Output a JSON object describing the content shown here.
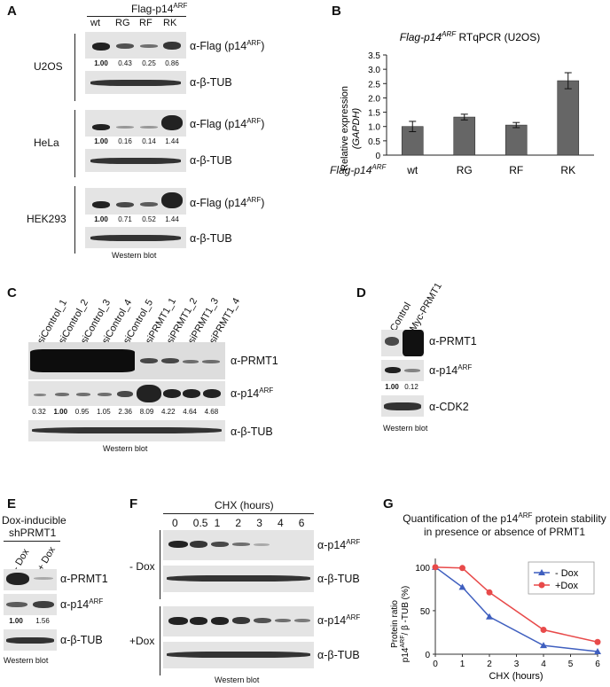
{
  "panelA": {
    "label": "A",
    "header": "Flag-p14",
    "header_sup": "ARF",
    "lanes": [
      "wt",
      "RG",
      "RF",
      "RK"
    ],
    "cells": [
      {
        "name": "U2OS",
        "flag_label": "α-Flag (p14",
        "quant": [
          "1.00",
          "0.43",
          "0.25",
          "0.86"
        ],
        "intensities": [
          1.0,
          0.43,
          0.25,
          0.86
        ]
      },
      {
        "name": "HeLa",
        "flag_label": "α-Flag (p14",
        "quant": [
          "1.00",
          "0.16",
          "0.14",
          "1.44"
        ],
        "intensities": [
          1.0,
          0.16,
          0.14,
          1.44
        ]
      },
      {
        "name": "HEK293",
        "flag_label": "α-Flag (p14",
        "quant": [
          "1.00",
          "0.71",
          "0.52",
          "1.44"
        ],
        "intensities": [
          1.0,
          0.71,
          0.52,
          1.44
        ]
      }
    ],
    "sup": "ARF",
    "close": ")",
    "tub_label": "α-β-TUB",
    "footer": "Western blot"
  },
  "panelB": {
    "label": "B",
    "title_italic": "Flag-p14",
    "title_sup": "ARF",
    "title_rest": " RTqPCR (U2OS)",
    "ylabel_main": "Relative expression",
    "ylabel_sub": "(GAPDH)",
    "row_label": "Flag-p14",
    "row_sup": "ARF",
    "chart_data": {
      "type": "bar",
      "categories": [
        "wt",
        "RG",
        "RF",
        "RK"
      ],
      "values": [
        1.0,
        1.33,
        1.05,
        2.6
      ],
      "errors": [
        0.18,
        0.1,
        0.09,
        0.28
      ],
      "ylim": [
        0,
        3.5
      ],
      "yticks": [
        "0",
        "0.5",
        "1.0",
        "1.5",
        "2.0",
        "2.5",
        "3.0",
        "3.5"
      ],
      "bar_color": "#666666"
    }
  },
  "panelC": {
    "label": "C",
    "lanes": [
      "siControl_1",
      "siControl_2",
      "siControl_3",
      "siControl_4",
      "siControl_5",
      "siPRMT1_1",
      "siPRMT1_2",
      "siPRMT1_3",
      "siPRMT1_4"
    ],
    "prmt1_label": "α-PRMT1",
    "p14_label": "α-p14",
    "sup": "ARF",
    "tub_label": "α-β-TUB",
    "quant": [
      "0.32",
      "1.00",
      "0.95",
      "1.05",
      "2.36",
      "8.09",
      "4.22",
      "4.64",
      "4.68"
    ],
    "footer": "Western blot"
  },
  "panelD": {
    "label": "D",
    "lanes": [
      "Control",
      "Myc-PRMT1"
    ],
    "prmt1_label": "α-PRMT1",
    "p14_label": "α-p14",
    "sup": "ARF",
    "cdk2_label": "α-CDK2",
    "quant": [
      "1.00",
      "0.12"
    ],
    "footer": "Western blot"
  },
  "panelE": {
    "label": "E",
    "title1": "Dox-inducible",
    "title2": "shPRMT1",
    "lanes": [
      "- Dox",
      "+ Dox"
    ],
    "prmt1_label": "α-PRMT1",
    "p14_label": "α-p14",
    "sup": "ARF",
    "tub_label": "α-β-TUB",
    "quant": [
      "1.00",
      "1.56"
    ],
    "footer": "Western blot"
  },
  "panelF": {
    "label": "F",
    "header": "CHX (hours)",
    "times": [
      "0",
      "0.5",
      "1",
      "2",
      "3",
      "4",
      "6"
    ],
    "groups": [
      "- Dox",
      "+Dox"
    ],
    "p14_label": "α-p14",
    "sup": "ARF",
    "tub_label": "α-β-TUB",
    "footer": "Western blot"
  },
  "panelG": {
    "label": "G",
    "title1": "Quantification of the p14",
    "title_sup": "ARF",
    "title1_rest": " protein stability",
    "title2": "in presence or absence of PRMT1",
    "ylabel1": "Protein ratio",
    "ylabel2a": "p14",
    "ylabel2b": "/ β -TUB (%)",
    "xlabel": "CHX (hours)",
    "chart_data": {
      "type": "line",
      "x": [
        0,
        1,
        2,
        4,
        6
      ],
      "series": [
        {
          "name": "- Dox",
          "values": [
            100,
            77,
            43,
            10,
            3
          ],
          "color": "#3f5fbf",
          "marker": "triangle"
        },
        {
          "name": "+Dox",
          "values": [
            100,
            99,
            71,
            28,
            14
          ],
          "color": "#e84a4a",
          "marker": "circle"
        }
      ],
      "xticks": [
        "0",
        "1",
        "2",
        "3",
        "4",
        "5",
        "6"
      ],
      "yticks": [
        "0",
        "50",
        "100"
      ],
      "xlim": [
        0,
        6
      ],
      "ylim": [
        0,
        110
      ],
      "legend": "top-right"
    }
  }
}
